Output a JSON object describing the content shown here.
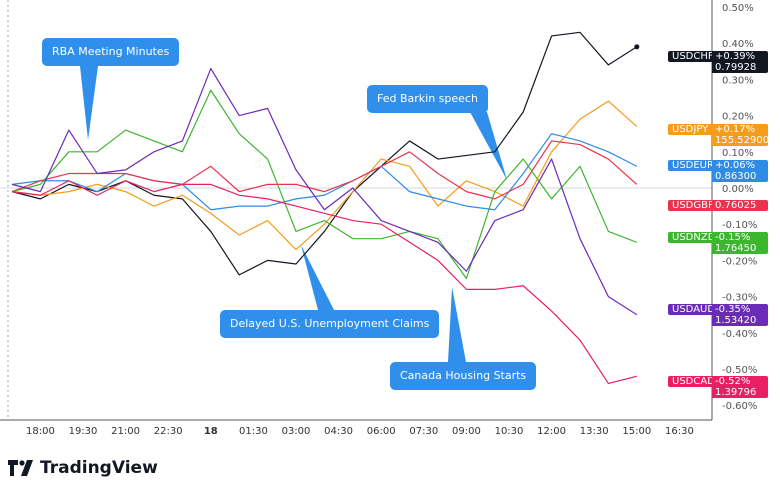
{
  "chart_data": {
    "type": "line",
    "x_unit": "time",
    "x": [
      "17:00",
      "18:00",
      "19:00",
      "20:00",
      "21:00",
      "22:00",
      "23:00",
      "00:00",
      "01:00",
      "02:00",
      "03:00",
      "04:00",
      "05:00",
      "06:00",
      "07:00",
      "08:00",
      "09:00",
      "10:00",
      "11:00",
      "12:00",
      "13:00",
      "14:00",
      "15:00"
    ],
    "x_ticks": [
      "18:00",
      "19:30",
      "21:00",
      "22:30",
      "18",
      "01:30",
      "03:00",
      "04:30",
      "06:00",
      "07:30",
      "09:00",
      "10:30",
      "12:00",
      "13:30",
      "15:00",
      "16:30"
    ],
    "y_ticks": [
      "0.50%",
      "0.40%",
      "0.30%",
      "0.20%",
      "0.10%",
      "0.00%",
      "-0.10%",
      "-0.20%",
      "-0.30%",
      "-0.40%",
      "-0.50%",
      "-0.60%"
    ],
    "ylim": [
      -0.63,
      0.52
    ],
    "y_unit": "%",
    "grid": false,
    "series": [
      {
        "name": "USDCHF",
        "color": "#131722",
        "change": "+0.39%",
        "price": "0.79928",
        "values": [
          -0.01,
          -0.03,
          0.01,
          -0.01,
          0.02,
          -0.02,
          -0.03,
          -0.12,
          -0.24,
          -0.2,
          -0.21,
          -0.12,
          -0.01,
          0.06,
          0.13,
          0.08,
          0.09,
          0.1,
          0.21,
          0.42,
          0.43,
          0.34,
          0.39
        ]
      },
      {
        "name": "USDJPY",
        "color": "#f59c1a",
        "change": "+0.17%",
        "price": "155.52900",
        "values": [
          -0.01,
          -0.02,
          -0.01,
          0.01,
          -0.01,
          -0.05,
          -0.02,
          -0.07,
          -0.13,
          -0.09,
          -0.17,
          -0.1,
          -0.01,
          0.08,
          0.06,
          -0.05,
          0.02,
          -0.01,
          -0.05,
          0.1,
          0.19,
          0.24,
          0.17
        ]
      },
      {
        "name": "USDEUR",
        "color": "#2e8be6",
        "change": "+0.06%",
        "price": "0.86300",
        "values": [
          0.01,
          0.02,
          0.02,
          -0.01,
          0.04,
          0.02,
          0.01,
          -0.06,
          -0.05,
          -0.05,
          -0.03,
          -0.02,
          0.02,
          0.06,
          -0.01,
          -0.03,
          -0.05,
          -0.06,
          0.04,
          0.15,
          0.13,
          0.1,
          0.06
        ]
      },
      {
        "name": "USDGBP",
        "color": "#e8344e",
        "change": "",
        "price": "0.76025",
        "values": [
          -0.01,
          0.02,
          0.04,
          0.04,
          0.04,
          0.02,
          0.01,
          0.06,
          -0.01,
          0.01,
          0.01,
          -0.01,
          0.02,
          0.06,
          0.1,
          0.04,
          -0.01,
          -0.03,
          0.01,
          0.13,
          0.12,
          0.08,
          0.01
        ]
      },
      {
        "name": "USDNZD",
        "color": "#3cb62e",
        "change": "-0.15%",
        "price": "1.76450",
        "values": [
          -0.01,
          0.01,
          0.1,
          0.1,
          0.16,
          0.13,
          0.1,
          0.27,
          0.15,
          0.08,
          -0.12,
          -0.09,
          -0.14,
          -0.14,
          -0.12,
          -0.14,
          -0.25,
          -0.01,
          0.08,
          -0.03,
          0.06,
          -0.12,
          -0.15
        ]
      },
      {
        "name": "USDAUD",
        "color": "#6a2bb8",
        "change": "-0.35%",
        "price": "1.53420",
        "values": [
          0.01,
          -0.01,
          0.16,
          0.04,
          0.05,
          0.1,
          0.13,
          0.33,
          0.2,
          0.22,
          0.05,
          -0.06,
          0.0,
          -0.09,
          -0.12,
          -0.15,
          -0.23,
          -0.09,
          -0.06,
          0.08,
          -0.14,
          -0.3,
          -0.35
        ]
      },
      {
        "name": "USDCAD",
        "color": "#e91e63",
        "change": "-0.52%",
        "price": "1.39796",
        "values": [
          -0.01,
          -0.02,
          0.02,
          -0.02,
          0.02,
          -0.01,
          0.01,
          0.01,
          -0.02,
          -0.03,
          -0.05,
          -0.07,
          -0.09,
          -0.1,
          -0.15,
          -0.2,
          -0.28,
          -0.28,
          -0.27,
          -0.34,
          -0.42,
          -0.54,
          -0.52
        ]
      }
    ],
    "annotations": [
      {
        "text": "RBA Meeting Minutes",
        "at": "19:30"
      },
      {
        "text": "Fed Barkin speech",
        "at": "10:30"
      },
      {
        "text": "Delayed U.S. Unemployment Claims",
        "at": "03:00"
      },
      {
        "text": "Canada Housing Starts",
        "at": "08:45"
      }
    ]
  },
  "brand": {
    "name": "TradingView"
  }
}
